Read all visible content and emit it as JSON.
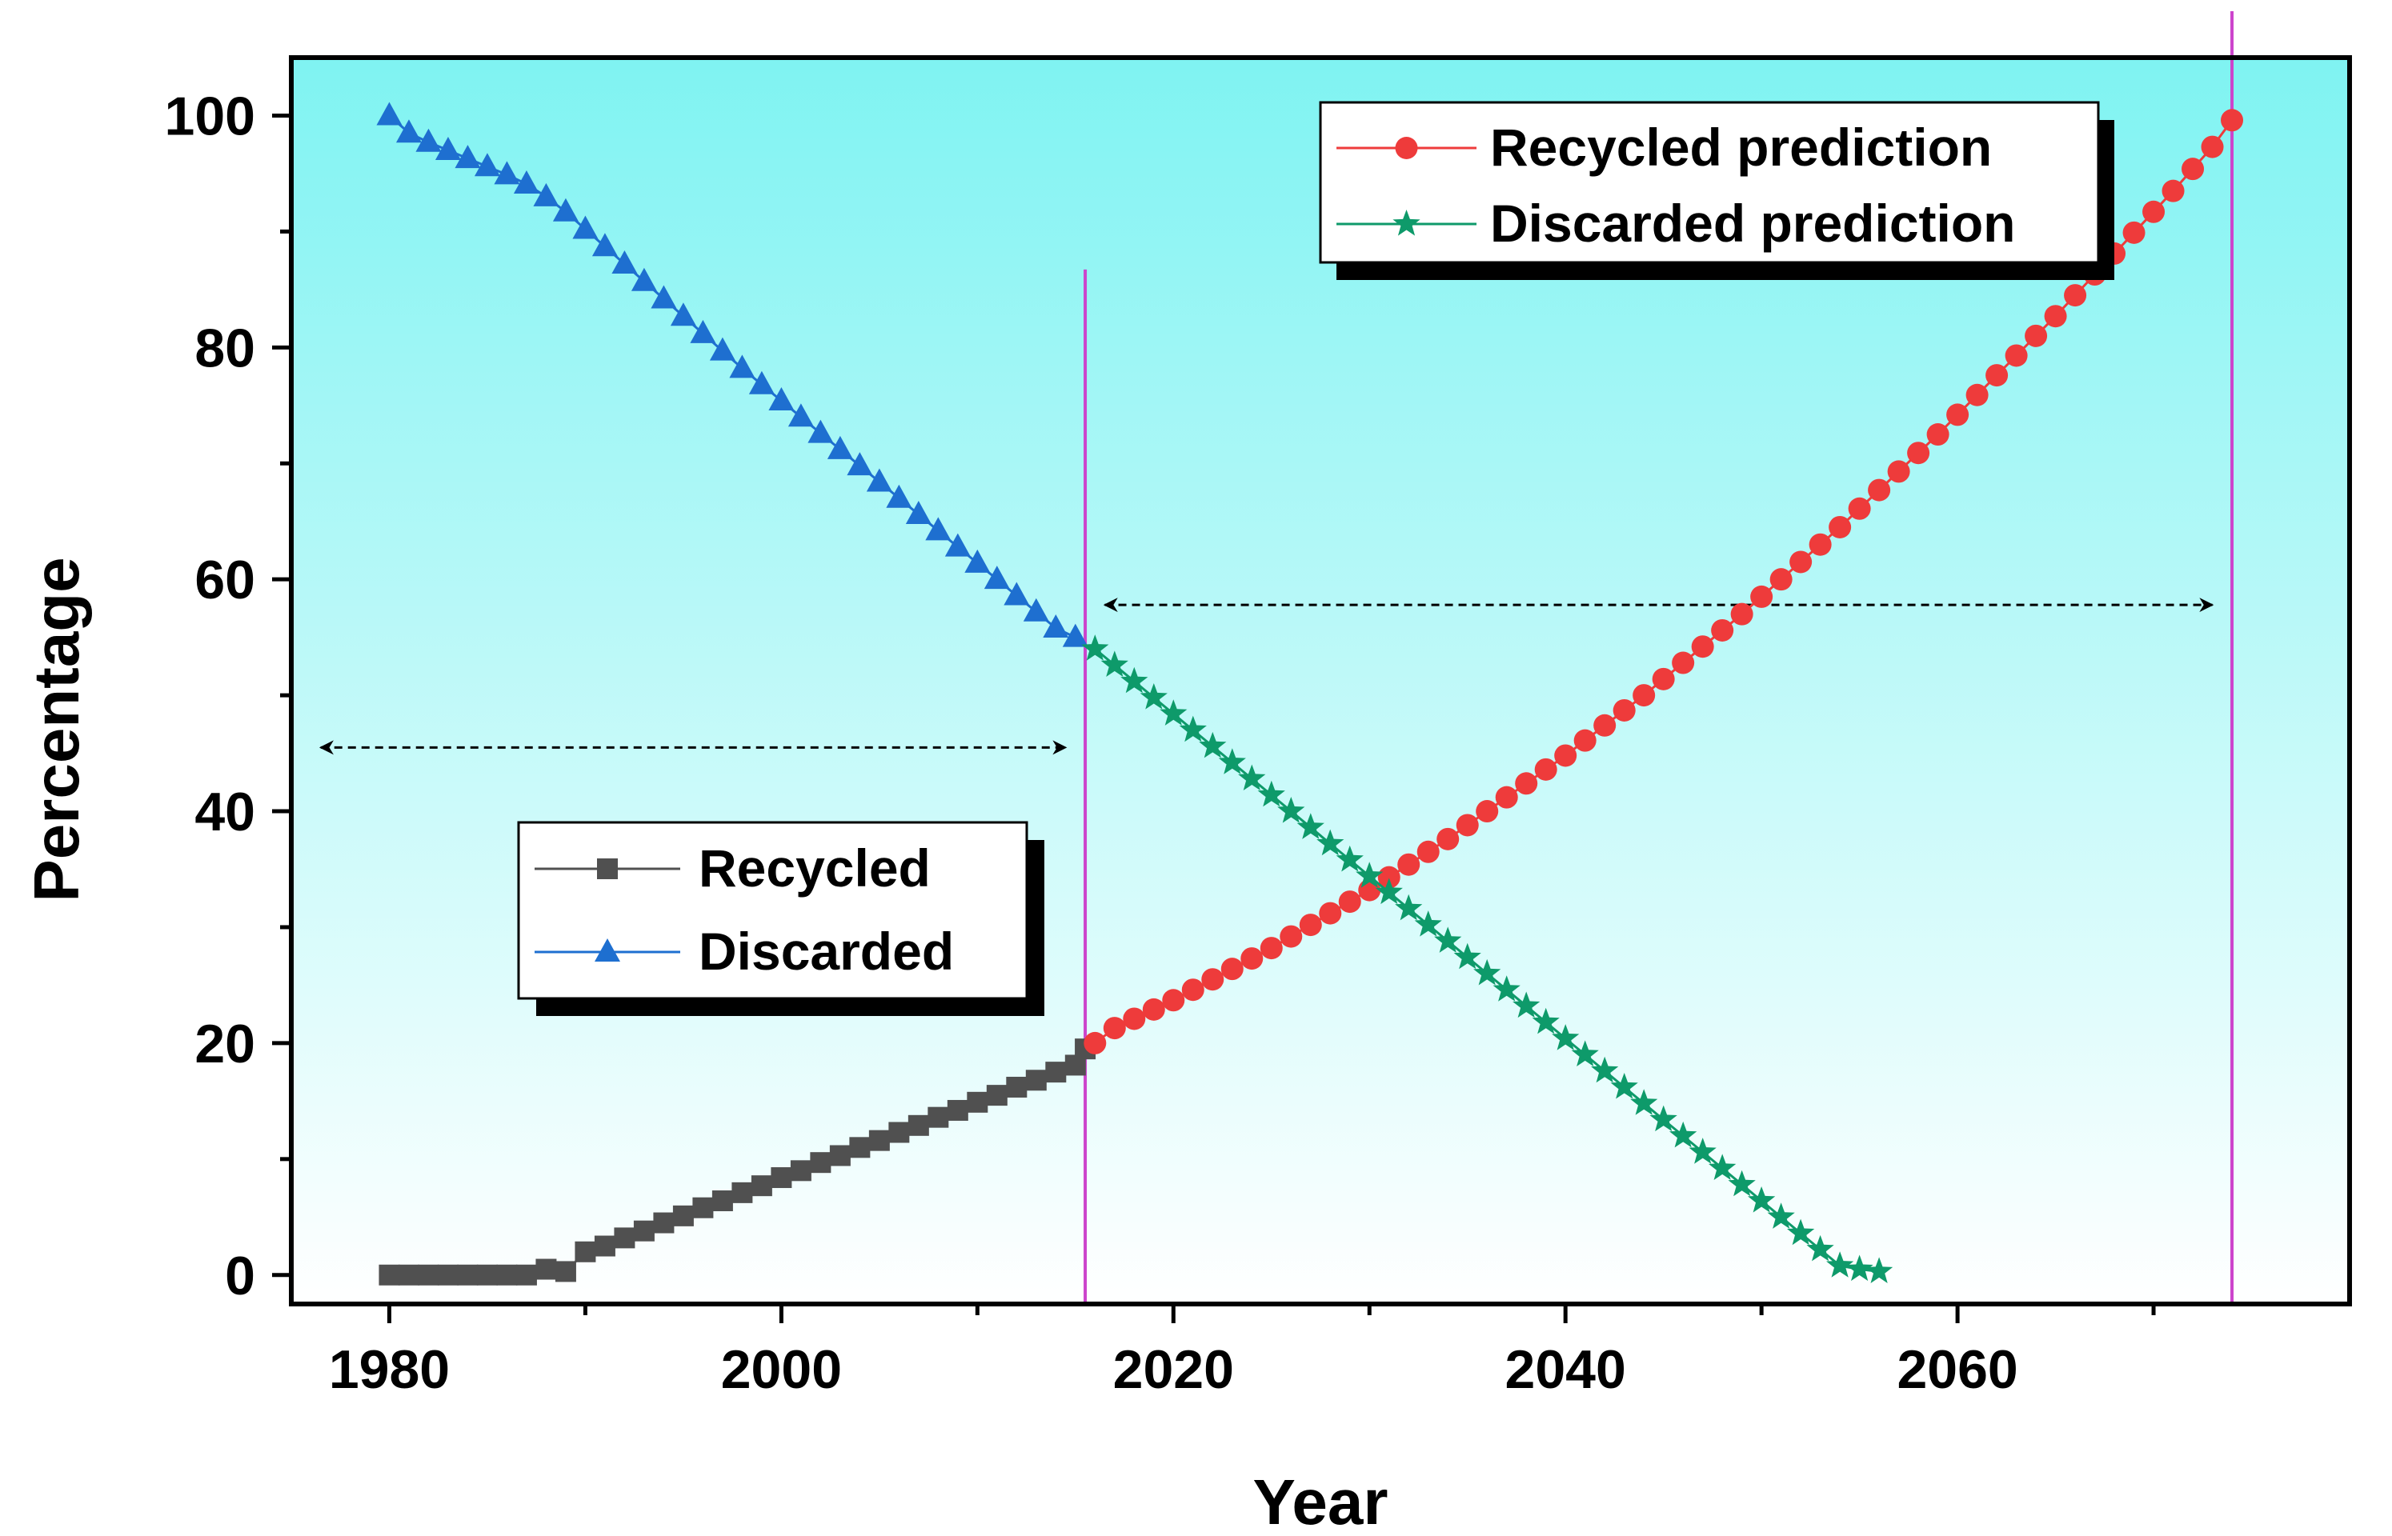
{
  "chart_data": {
    "type": "line",
    "title": "",
    "xlabel": "Year",
    "ylabel": "Percentage",
    "xlim": [
      1975,
      2080
    ],
    "ylim": [
      -2.5,
      105
    ],
    "xticks": [
      1980,
      2000,
      2020,
      2040,
      2060
    ],
    "yticks": [
      0,
      20,
      40,
      60,
      80,
      100
    ],
    "background_gradient": [
      "#7FF3F2",
      "#FFFFFF"
    ],
    "vertical_markers": [
      2015.5,
      2074
    ],
    "marker_line_color": "#CC44CC",
    "annotations": [
      {
        "type": "double-arrow",
        "from": [
          1976.5,
          45.5
        ],
        "to": [
          2014.5,
          45.5
        ]
      },
      {
        "type": "double-arrow",
        "from": [
          2016.5,
          57.8
        ],
        "to": [
          2073,
          57.8
        ]
      }
    ],
    "series": [
      {
        "name": "Recycled",
        "color": "#505050",
        "marker": "square",
        "legend_group": "left",
        "points": [
          [
            1980,
            0
          ],
          [
            1981,
            0
          ],
          [
            1982,
            0
          ],
          [
            1983,
            0
          ],
          [
            1984,
            0
          ],
          [
            1985,
            0
          ],
          [
            1986,
            0
          ],
          [
            1987,
            0
          ],
          [
            1988,
            0.5
          ],
          [
            1989,
            0.3
          ],
          [
            1990,
            2
          ],
          [
            1991,
            2.5
          ],
          [
            1992,
            3.2
          ],
          [
            1993,
            3.8
          ],
          [
            1994,
            4.5
          ],
          [
            1995,
            5.1
          ],
          [
            1996,
            5.8
          ],
          [
            1997,
            6.4
          ],
          [
            1998,
            7.1
          ],
          [
            1999,
            7.7
          ],
          [
            2000,
            8.4
          ],
          [
            2001,
            9
          ],
          [
            2002,
            9.7
          ],
          [
            2003,
            10.3
          ],
          [
            2004,
            11
          ],
          [
            2005,
            11.6
          ],
          [
            2006,
            12.3
          ],
          [
            2007,
            12.9
          ],
          [
            2008,
            13.6
          ],
          [
            2009,
            14.2
          ],
          [
            2010,
            14.9
          ],
          [
            2011,
            15.5
          ],
          [
            2012,
            16.2
          ],
          [
            2013,
            16.8
          ],
          [
            2014,
            17.5
          ],
          [
            2015,
            18.1
          ],
          [
            2015.5,
            19.5
          ]
        ]
      },
      {
        "name": "Discarded",
        "color": "#1E6FD0",
        "marker": "triangle",
        "legend_group": "left",
        "points": [
          [
            1980,
            100
          ],
          [
            1981,
            98.5
          ],
          [
            1982,
            97.7
          ],
          [
            1983,
            97
          ],
          [
            1984,
            96.3
          ],
          [
            1985,
            95.6
          ],
          [
            1986,
            94.9
          ],
          [
            1987,
            94.1
          ],
          [
            1988,
            93
          ],
          [
            1989,
            91.7
          ],
          [
            1990,
            90.2
          ],
          [
            1991,
            88.7
          ],
          [
            1992,
            87.2
          ],
          [
            1993,
            85.7
          ],
          [
            1994,
            84.2
          ],
          [
            1995,
            82.7
          ],
          [
            1996,
            81.2
          ],
          [
            1997,
            79.7
          ],
          [
            1998,
            78.2
          ],
          [
            1999,
            76.8
          ],
          [
            2000,
            75.4
          ],
          [
            2001,
            74
          ],
          [
            2002,
            72.6
          ],
          [
            2003,
            71.2
          ],
          [
            2004,
            69.8
          ],
          [
            2005,
            68.4
          ],
          [
            2006,
            67
          ],
          [
            2007,
            65.6
          ],
          [
            2008,
            64.2
          ],
          [
            2009,
            62.8
          ],
          [
            2010,
            61.4
          ],
          [
            2011,
            60
          ],
          [
            2012,
            58.6
          ],
          [
            2013,
            57.2
          ],
          [
            2014,
            55.8
          ],
          [
            2015,
            55
          ]
        ]
      },
      {
        "name": "Recycled prediction",
        "color": "#EE3B3B",
        "marker": "circle",
        "legend_group": "right",
        "points": [
          [
            2016,
            20
          ],
          [
            2017,
            21.3
          ],
          [
            2018,
            22.1
          ],
          [
            2019,
            22.9
          ],
          [
            2020,
            23.7
          ],
          [
            2021,
            24.6
          ],
          [
            2022,
            25.5
          ],
          [
            2023,
            26.4
          ],
          [
            2024,
            27.3
          ],
          [
            2025,
            28.2
          ],
          [
            2026,
            29.2
          ],
          [
            2027,
            30.2
          ],
          [
            2028,
            31.2
          ],
          [
            2029,
            32.2
          ],
          [
            2030,
            33.2
          ],
          [
            2031,
            34.3
          ],
          [
            2032,
            35.4
          ],
          [
            2033,
            36.5
          ],
          [
            2034,
            37.6
          ],
          [
            2035,
            38.8
          ],
          [
            2036,
            40
          ],
          [
            2037,
            41.2
          ],
          [
            2038,
            42.4
          ],
          [
            2039,
            43.6
          ],
          [
            2040,
            44.8
          ],
          [
            2041,
            46.1
          ],
          [
            2042,
            47.4
          ],
          [
            2043,
            48.7
          ],
          [
            2044,
            50
          ],
          [
            2045,
            51.4
          ],
          [
            2046,
            52.8
          ],
          [
            2047,
            54.2
          ],
          [
            2048,
            55.6
          ],
          [
            2049,
            57
          ],
          [
            2050,
            58.5
          ],
          [
            2051,
            60
          ],
          [
            2052,
            61.5
          ],
          [
            2053,
            63
          ],
          [
            2054,
            64.5
          ],
          [
            2055,
            66.1
          ],
          [
            2056,
            67.7
          ],
          [
            2057,
            69.3
          ],
          [
            2058,
            70.9
          ],
          [
            2059,
            72.5
          ],
          [
            2060,
            74.2
          ],
          [
            2061,
            75.9
          ],
          [
            2062,
            77.6
          ],
          [
            2063,
            79.3
          ],
          [
            2064,
            81
          ],
          [
            2065,
            82.7
          ],
          [
            2066,
            84.5
          ],
          [
            2067,
            86.3
          ],
          [
            2068,
            88.1
          ],
          [
            2069,
            89.9
          ],
          [
            2070,
            91.7
          ],
          [
            2071,
            93.5
          ],
          [
            2072,
            95.4
          ],
          [
            2073,
            97.3
          ],
          [
            2074,
            99.6
          ]
        ]
      },
      {
        "name": "Discarded prediction",
        "color": "#0E9A6A",
        "marker": "star",
        "legend_group": "right",
        "points": [
          [
            2016,
            54
          ],
          [
            2017,
            52.6
          ],
          [
            2018,
            51.2
          ],
          [
            2019,
            49.8
          ],
          [
            2020,
            48.4
          ],
          [
            2021,
            47
          ],
          [
            2022,
            45.6
          ],
          [
            2023,
            44.2
          ],
          [
            2024,
            42.8
          ],
          [
            2025,
            41.4
          ],
          [
            2026,
            40
          ],
          [
            2027,
            38.6
          ],
          [
            2028,
            37.2
          ],
          [
            2029,
            35.8
          ],
          [
            2030,
            34.4
          ],
          [
            2031,
            33
          ],
          [
            2032,
            31.6
          ],
          [
            2033,
            30.2
          ],
          [
            2034,
            28.8
          ],
          [
            2035,
            27.4
          ],
          [
            2036,
            26
          ],
          [
            2037,
            24.6
          ],
          [
            2038,
            23.2
          ],
          [
            2039,
            21.8
          ],
          [
            2040,
            20.4
          ],
          [
            2041,
            19
          ],
          [
            2042,
            17.6
          ],
          [
            2043,
            16.2
          ],
          [
            2044,
            14.8
          ],
          [
            2045,
            13.4
          ],
          [
            2046,
            12
          ],
          [
            2047,
            10.6
          ],
          [
            2048,
            9.2
          ],
          [
            2049,
            7.8
          ],
          [
            2050,
            6.4
          ],
          [
            2051,
            5
          ],
          [
            2052,
            3.6
          ],
          [
            2053,
            2.2
          ],
          [
            2054,
            0.8
          ],
          [
            2055,
            0.5
          ],
          [
            2056,
            0.3
          ]
        ]
      }
    ]
  }
}
